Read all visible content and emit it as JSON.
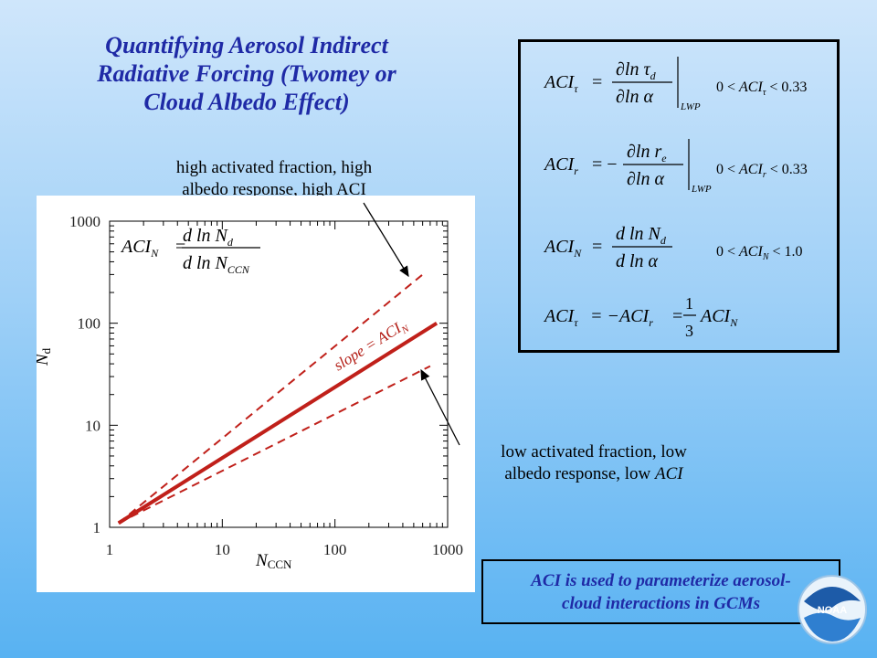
{
  "title": {
    "line1": "Quantifying Aerosol Indirect",
    "line2": "Radiative Forcing (Twomey or",
    "line3": "Cloud Albedo Effect)"
  },
  "annotations": {
    "high_line1": "high activated fraction, high",
    "high_line2": "albedo response, high ACI",
    "low_line1": "low activated fraction, low",
    "low_line2_plain": "albedo response, low ",
    "low_line2_italic": "ACI"
  },
  "chart_data": {
    "type": "line",
    "x_scale": "log",
    "y_scale": "log",
    "xlim": [
      1,
      1000
    ],
    "ylim": [
      1,
      1000
    ],
    "x_ticks": [
      "1",
      "10",
      "100",
      "1000"
    ],
    "y_ticks": [
      "1",
      "10",
      "100",
      "1000"
    ],
    "xlabel_main": "N",
    "xlabel_sub": "CCN",
    "ylabel_main": "N",
    "ylabel_sub": "d",
    "series": [
      {
        "style": "dashed",
        "x": [
          1.2,
          600
        ],
        "y": [
          1.1,
          300
        ]
      },
      {
        "style": "solid",
        "x": [
          1.2,
          800
        ],
        "y": [
          1.1,
          100
        ]
      },
      {
        "style": "dashed",
        "x": [
          1.2,
          700
        ],
        "y": [
          1.1,
          38
        ]
      }
    ],
    "line_label": "slope = ACI",
    "line_label_sub": "N",
    "equation": {
      "lhs": "ACI",
      "lhs_sub": "N",
      "num": "d ln N",
      "num_sub": "d",
      "den": "d ln N",
      "den_sub": "CCN"
    },
    "color": "#c0201a"
  },
  "equations_box": [
    {
      "lhs": "ACI",
      "lhs_sub": "τ",
      "sign": "=",
      "num": "∂ln τ",
      "num_sub": "d",
      "den": "∂ln α",
      "eval_sub": "LWP",
      "range_left": "0 < ",
      "range_var": "ACI",
      "range_sub": "τ",
      "range_right": " < 0.33"
    },
    {
      "lhs": "ACI",
      "lhs_sub": "r",
      "sign": "= −",
      "num": "∂ln r",
      "num_sub": "e",
      "den": "∂ln α",
      "eval_sub": "LWP",
      "range_left": "0 < ",
      "range_var": "ACI",
      "range_sub": "r",
      "range_right": " < 0.33"
    },
    {
      "lhs": "ACI",
      "lhs_sub": "N",
      "sign": "=",
      "num": "d ln N",
      "num_sub": "d",
      "den": "d ln α",
      "eval_sub": "",
      "range_left": "0 < ",
      "range_var": "ACI",
      "range_sub": "N",
      "range_right": " < 1.0"
    }
  ],
  "relation": {
    "lhs": "ACI",
    "lhs_sub": "τ",
    "mid": "= −ACI",
    "mid_sub": "r",
    "eq2": "=",
    "frac_num": "1",
    "frac_den": "3",
    "rhs": "ACI",
    "rhs_sub": "N"
  },
  "footer": {
    "line1": "ACI is used to parameterize aerosol-",
    "line2": "cloud interactions in GCMs"
  },
  "logo": {
    "text": "NOAA"
  }
}
